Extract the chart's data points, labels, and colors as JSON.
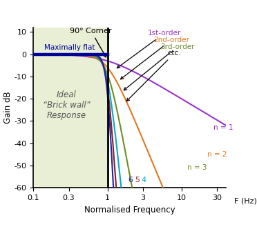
{
  "xlabel": "Normalised Frequency",
  "ylabel": "Gain dB",
  "xlim_log": [
    0.1,
    40
  ],
  "ylim": [
    -60,
    12
  ],
  "yticks": [
    10,
    0,
    -10,
    -20,
    -30,
    -40,
    -50,
    -60
  ],
  "xticks_vals": [
    0.1,
    0.3,
    1,
    3,
    10,
    30
  ],
  "xtick_labels": [
    "0.1",
    "0.3",
    "1",
    "3",
    "10",
    "30"
  ],
  "orders": [
    1,
    2,
    3,
    4,
    5,
    6
  ],
  "order_colors": [
    "#9933cc",
    "#e07820",
    "#6b8e23",
    "#00aacc",
    "#8b2020",
    "#2222aa"
  ],
  "bg_fill_color": "#e8efd4",
  "maximally_flat_color": "#000099",
  "text_color_ideal": "#555555"
}
